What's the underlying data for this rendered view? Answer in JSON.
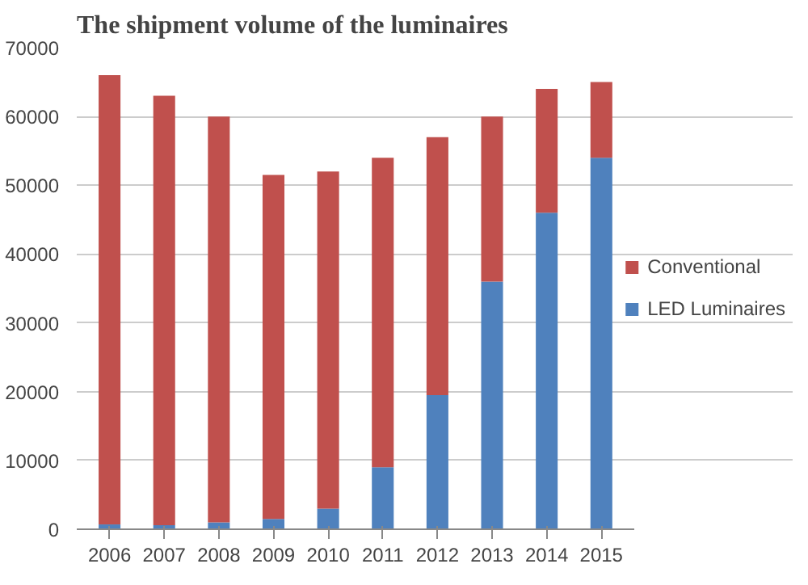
{
  "chart_data": {
    "type": "bar",
    "stacked": true,
    "title": "The shipment volume of the luminaires",
    "categories": [
      "2006",
      "2007",
      "2008",
      "2009",
      "2010",
      "2011",
      "2012",
      "2013",
      "2014",
      "2015"
    ],
    "series": [
      {
        "name": "LED Luminaires",
        "color": "#4f81bd",
        "values": [
          700,
          600,
          1000,
          1500,
          3000,
          9000,
          19500,
          36000,
          46000,
          54000
        ]
      },
      {
        "name": "Conventional",
        "color": "#c0504d",
        "values": [
          65300,
          62400,
          59000,
          50000,
          49000,
          45000,
          37500,
          24000,
          18000,
          11000
        ]
      }
    ],
    "ylim": [
      0,
      70000
    ],
    "yticks": [
      0,
      10000,
      20000,
      30000,
      40000,
      50000,
      60000,
      70000
    ],
    "grid": "y",
    "legend": "right"
  }
}
